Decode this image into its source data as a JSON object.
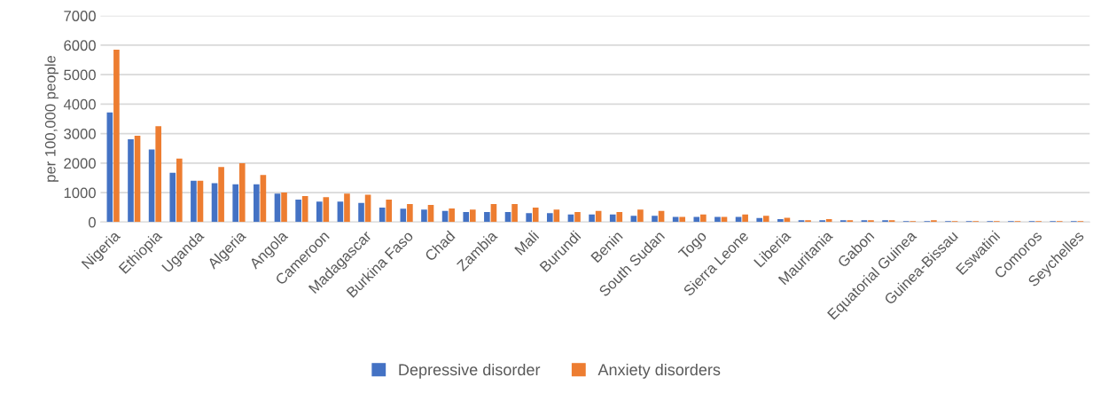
{
  "chart_data": {
    "type": "bar",
    "categories": [
      "Nigeria",
      null,
      "Ethiopia",
      null,
      "Uganda",
      null,
      "Algeria",
      null,
      "Angola",
      null,
      "Cameroon",
      null,
      "Madagascar",
      null,
      "Burkina Faso",
      null,
      "Chad",
      null,
      "Zambia",
      null,
      "Mali",
      null,
      "Burundi",
      null,
      "Benin",
      null,
      "South Sudan",
      null,
      "Togo",
      null,
      "Sierra Leone",
      null,
      "Liberia",
      null,
      "Mauritania",
      null,
      "Gabon",
      null,
      "Equatorial Guinea",
      null,
      "Guinea-Bissau",
      null,
      "Eswatini",
      null,
      "Comoros",
      null,
      "Seychelles"
    ],
    "ylabel": "per 100,000 people",
    "series": [
      {
        "name": "Depressive disorder",
        "color": "#4472c4",
        "values": [
          3720,
          2810,
          2460,
          1670,
          1400,
          1320,
          1280,
          1280,
          965,
          765,
          690,
          690,
          650,
          490,
          450,
          420,
          380,
          340,
          340,
          340,
          300,
          300,
          255,
          255,
          255,
          215,
          215,
          175,
          175,
          175,
          175,
          135,
          100,
          60,
          60,
          60,
          60,
          60,
          30,
          30,
          30,
          30,
          30,
          30,
          30,
          30,
          30
        ]
      },
      {
        "name": "Anxiety disorders",
        "color": "#ed7d31",
        "values": [
          5850,
          2930,
          3250,
          2150,
          1400,
          1870,
          1995,
          1600,
          1005,
          885,
          845,
          965,
          925,
          765,
          610,
          580,
          460,
          420,
          610,
          610,
          490,
          420,
          340,
          380,
          340,
          420,
          380,
          175,
          255,
          175,
          255,
          215,
          145,
          60,
          100,
          60,
          60,
          60,
          30,
          60,
          30,
          30,
          30,
          30,
          30,
          30,
          30
        ]
      }
    ],
    "ylim": [
      0,
      7000
    ],
    "yticks": [
      0,
      1000,
      2000,
      3000,
      4000,
      5000,
      6000,
      7000
    ],
    "grid": "y",
    "legend": "bottom"
  }
}
